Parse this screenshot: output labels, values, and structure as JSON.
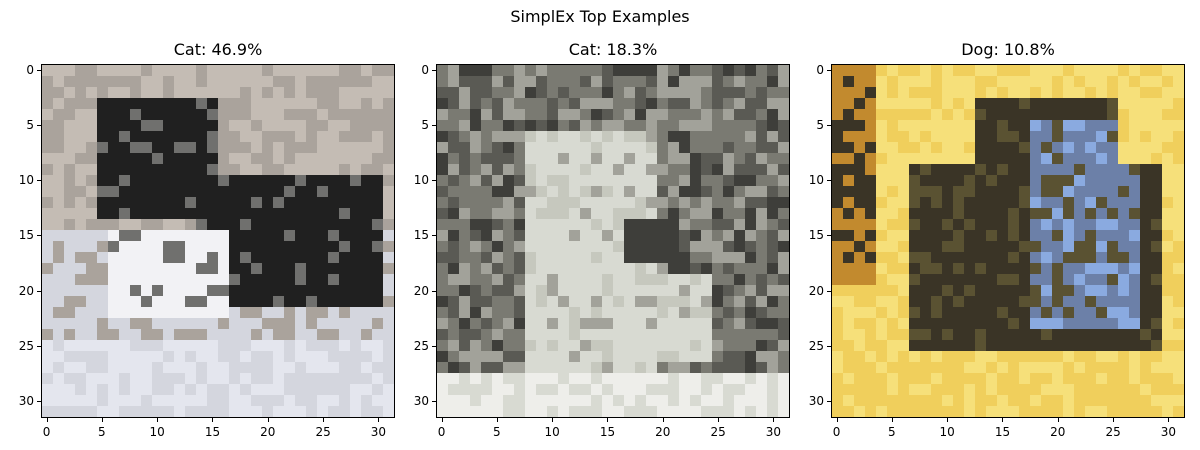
{
  "figure_title": "SimplEx Top Examples",
  "panels": [
    {
      "title": "Cat: 46.9%",
      "image_icon": "pixelated-cat-photo",
      "palette": [
        "#c4bcb4",
        "#aaa39c",
        "#202020",
        "#f2f2f5",
        "#d4d6de",
        "#70706e",
        "#e4e6ee"
      ]
    },
    {
      "title": "Cat: 18.3%",
      "image_icon": "pixelated-grayscale-cat-photo",
      "palette": [
        "#7a7a72",
        "#5a5a54",
        "#d8dad2",
        "#c6c8be",
        "#3e3e3a",
        "#a2a29a",
        "#eeeeea"
      ]
    },
    {
      "title": "Dog: 10.8%",
      "image_icon": "pixelated-dog-on-yellow-photo",
      "palette": [
        "#f0cf5c",
        "#c28a2e",
        "#3a3426",
        "#6c80a8",
        "#8aaae0",
        "#5a5232",
        "#f6e07a"
      ]
    }
  ],
  "axes": {
    "ticks": [
      "0",
      "5",
      "10",
      "15",
      "20",
      "25",
      "30"
    ]
  }
}
